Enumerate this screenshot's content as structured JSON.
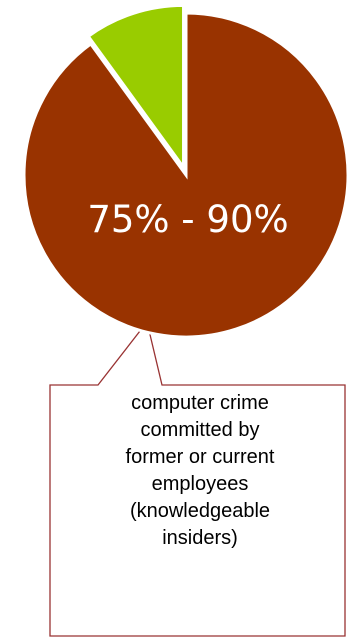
{
  "chart_data": {
    "type": "pie",
    "slices": [
      {
        "label": "75% - 90%",
        "value": 90,
        "color": "#993300"
      },
      {
        "label": "",
        "value": 10,
        "color": "#99CC00",
        "exploded": true
      }
    ],
    "legend": "none"
  },
  "callout": {
    "lines": [
      "computer crime",
      "committed by",
      "former or current",
      "employees",
      "(knowledgeable",
      "insiders)"
    ],
    "border_color": "#993333"
  }
}
